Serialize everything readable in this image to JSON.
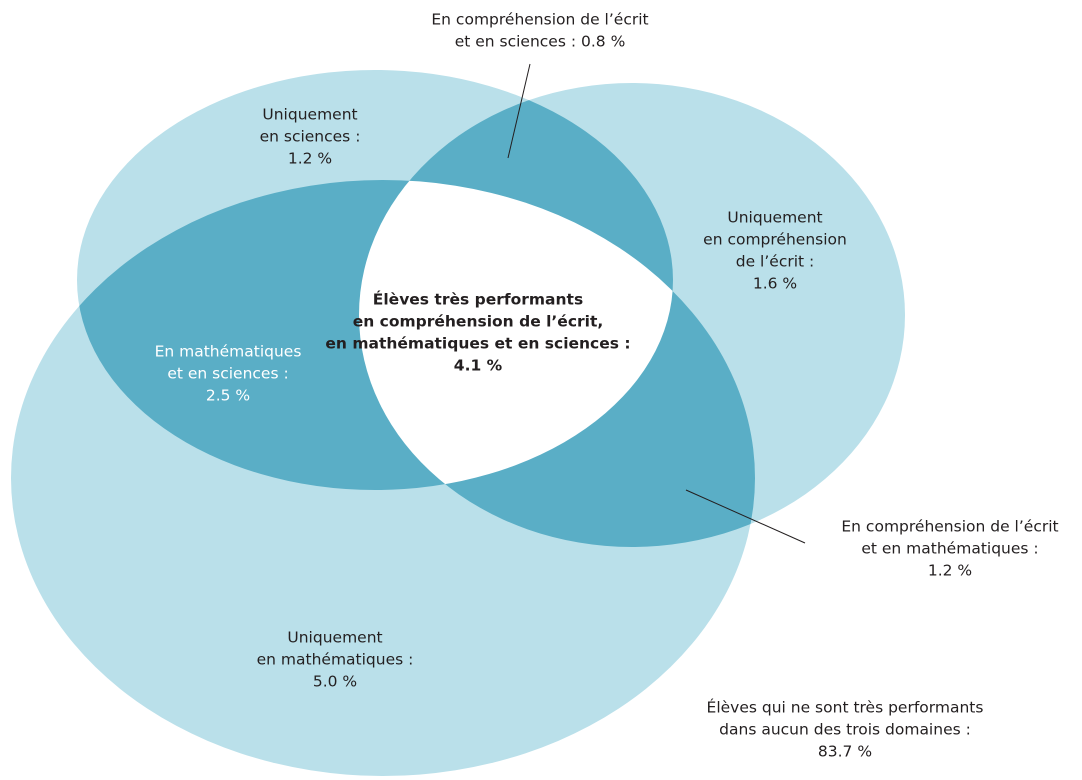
{
  "labels": [
    {
      "lines": [
        "En compréhension de l’écrit",
        "et en sciences : 0.8 %"
      ]
    },
    {
      "lines": [
        "Uniquement",
        "en sciences :",
        "1.2 %"
      ]
    },
    {
      "lines": [
        "Uniquement",
        "en compréhension",
        "de l’écrit :",
        "1.6 %"
      ]
    },
    {
      "lines": [
        "Élèves très performants",
        "en compréhension de l’écrit,",
        "en mathématiques et en sciences :",
        "4.1 %"
      ]
    },
    {
      "lines": [
        "En mathématiques",
        "et en sciences :",
        "2.5 %"
      ]
    },
    {
      "lines": [
        "En compréhension de l’écrit",
        "et en mathématiques :",
        "1.2 %"
      ]
    },
    {
      "lines": [
        "Uniquement",
        "en mathématiques :",
        "5.0 %"
      ]
    },
    {
      "lines": [
        "Élèves qui ne sont très performants",
        "dans aucun des trois domaines :",
        "83.7 %"
      ]
    }
  ]
}
